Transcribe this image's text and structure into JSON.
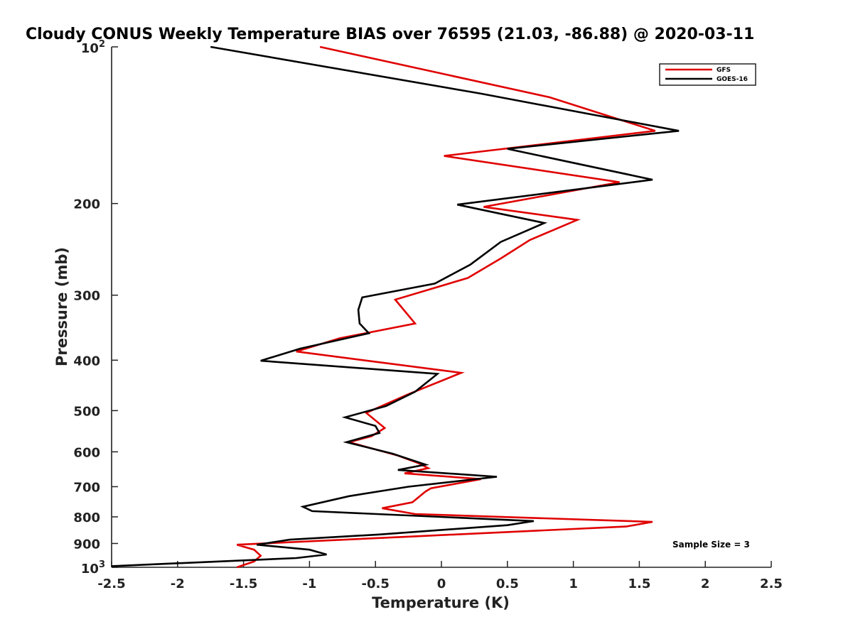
{
  "chart_data": {
    "type": "line",
    "title": "Cloudy CONUS Weekly Temperature BIAS over 76595 (21.03, -86.88) @ 2020-03-11",
    "xlabel": "Temperature (K)",
    "ylabel": "Pressure (mb)",
    "xlim": [
      -2.5,
      2.5
    ],
    "ylim": [
      100,
      1000
    ],
    "yscale": "log",
    "xticks": [
      -2.5,
      -2,
      -1.5,
      -1,
      -0.5,
      0,
      0.5,
      1,
      1.5,
      2,
      2.5
    ],
    "xtick_labels": [
      "-2.5",
      "-2",
      "-1.5",
      "-1",
      "-0.5",
      "0",
      "0.5",
      "1",
      "1.5",
      "2",
      "2.5"
    ],
    "yticks": [
      200,
      300,
      400,
      500,
      600,
      700,
      800,
      900
    ],
    "ytick_labels": [
      "200",
      "300",
      "400",
      "500",
      "600",
      "700",
      "800",
      "900"
    ],
    "ytick_top": {
      "base": "10",
      "exp": "2"
    },
    "ytick_bottom": {
      "base": "10",
      "exp": "3"
    },
    "legend_position": "top-right",
    "annotation": "Sample Size = 3",
    "series": [
      {
        "name": "GFS",
        "color": "#e00000",
        "x": [
          -0.92,
          0.82,
          1.62,
          0.02,
          1.35,
          0.32,
          1.03,
          0.67,
          0.45,
          0.2,
          -0.35,
          -0.2,
          -0.77,
          -1.1,
          0.15,
          -0.25,
          -0.57,
          -0.43,
          -0.53,
          -0.7,
          -0.33,
          -0.18,
          -0.1,
          -0.28,
          0.3,
          -0.08,
          -0.12,
          -0.22,
          -0.45,
          -0.2,
          1.6,
          1.4,
          -0.2,
          -1.55,
          -1.42,
          -1.37,
          -1.42,
          -1.55
        ],
        "y": [
          100,
          125,
          145,
          162,
          182,
          203,
          215,
          235,
          255,
          278,
          306,
          340,
          363,
          385,
          423,
          465,
          505,
          540,
          560,
          575,
          610,
          630,
          645,
          660,
          677,
          705,
          715,
          750,
          770,
          790,
          818,
          835,
          872,
          905,
          925,
          950,
          975,
          1000
        ]
      },
      {
        "name": "GOES-16",
        "color": "#000000",
        "x": [
          -1.75,
          0.3,
          1.8,
          0.5,
          1.6,
          0.12,
          0.78,
          0.45,
          0.22,
          -0.05,
          -0.6,
          -0.63,
          -0.62,
          -0.55,
          -1.07,
          -1.37,
          -0.03,
          -0.2,
          -0.42,
          -0.73,
          -0.5,
          -0.47,
          -0.72,
          -0.37,
          -0.12,
          -0.33,
          0.42,
          -0.25,
          -0.7,
          -1.05,
          -0.98,
          0.7,
          0.5,
          -0.47,
          -1.15,
          -1.4,
          -1.0,
          -0.87,
          -1.1,
          -2.5
        ],
        "y": [
          100,
          123,
          145,
          157,
          180,
          201,
          218,
          237,
          262,
          285,
          303,
          320,
          340,
          355,
          380,
          401,
          425,
          460,
          490,
          515,
          535,
          552,
          575,
          605,
          635,
          650,
          670,
          700,
          730,
          765,
          780,
          815,
          830,
          865,
          885,
          905,
          925,
          945,
          960,
          995
        ]
      }
    ]
  }
}
